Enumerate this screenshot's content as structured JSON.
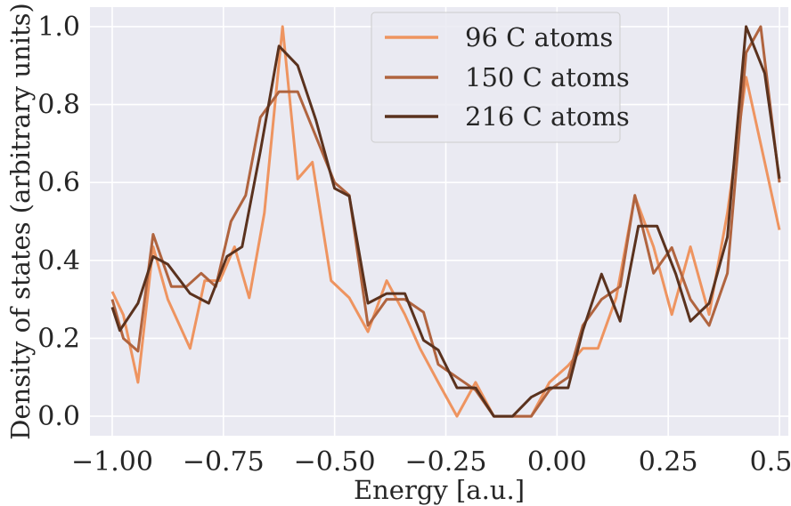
{
  "chart_data": {
    "type": "line",
    "xlabel": "Energy [a.u.]",
    "ylabel": "Density of states (arbitrary units)",
    "xlim": [
      -1.05,
      0.52
    ],
    "ylim": [
      -0.05,
      1.05
    ],
    "x_ticks": [
      -1.0,
      -0.75,
      -0.5,
      -0.25,
      0.0,
      0.25,
      0.5
    ],
    "x_tick_labels": [
      "−1.00",
      "−0.75",
      "−0.50",
      "−0.25",
      "0.00",
      "0.25",
      "0.50"
    ],
    "y_ticks": [
      0.0,
      0.2,
      0.4,
      0.6,
      0.8,
      1.0
    ],
    "y_tick_labels": [
      "0.0",
      "0.2",
      "0.4",
      "0.6",
      "0.8",
      "1.0"
    ],
    "grid": true,
    "legend_position": "top-center",
    "background": "#eaeaf2",
    "grid_color": "#ffffff",
    "series": [
      {
        "name": "96 C atoms",
        "color": "#ee9460",
        "x": [
          -1.0,
          -0.975,
          -0.942,
          -0.908,
          -0.875,
          -0.825,
          -0.792,
          -0.758,
          -0.725,
          -0.692,
          -0.658,
          -0.617,
          -0.583,
          -0.55,
          -0.508,
          -0.467,
          -0.425,
          -0.383,
          -0.342,
          -0.308,
          -0.267,
          -0.225,
          -0.183,
          -0.142,
          -0.1,
          -0.058,
          -0.017,
          0.025,
          0.058,
          0.092,
          0.133,
          0.175,
          0.217,
          0.258,
          0.3,
          0.342,
          0.383,
          0.425,
          0.467,
          0.5
        ],
        "y": [
          0.32,
          0.26,
          0.087,
          0.435,
          0.3,
          0.174,
          0.348,
          0.348,
          0.435,
          0.304,
          0.522,
          1.0,
          0.609,
          0.652,
          0.348,
          0.304,
          0.217,
          0.348,
          0.261,
          0.174,
          0.087,
          0.0,
          0.087,
          0.0,
          0.0,
          0.0,
          0.087,
          0.13,
          0.174,
          0.174,
          0.304,
          0.565,
          0.435,
          0.261,
          0.435,
          0.261,
          0.522,
          0.87,
          0.652,
          0.478
        ]
      },
      {
        "name": "150 C atoms",
        "color": "#b0643f",
        "x": [
          -1.0,
          -0.975,
          -0.942,
          -0.908,
          -0.867,
          -0.833,
          -0.8,
          -0.767,
          -0.733,
          -0.7,
          -0.667,
          -0.625,
          -0.583,
          -0.5,
          -0.467,
          -0.425,
          -0.383,
          -0.342,
          -0.3,
          -0.267,
          -0.225,
          -0.183,
          -0.142,
          -0.1,
          -0.058,
          -0.017,
          0.025,
          0.058,
          0.1,
          0.142,
          0.175,
          0.217,
          0.258,
          0.3,
          0.342,
          0.383,
          0.425,
          0.458,
          0.5
        ],
        "y": [
          0.3,
          0.2,
          0.167,
          0.467,
          0.333,
          0.333,
          0.367,
          0.333,
          0.5,
          0.567,
          0.767,
          0.833,
          0.833,
          0.6,
          0.567,
          0.233,
          0.3,
          0.3,
          0.267,
          0.133,
          0.1,
          0.067,
          0.0,
          0.0,
          0.0,
          0.067,
          0.1,
          0.233,
          0.3,
          0.333,
          0.567,
          0.367,
          0.433,
          0.3,
          0.233,
          0.367,
          0.933,
          1.0,
          0.6
        ]
      },
      {
        "name": "216 C atoms",
        "color": "#5a321e",
        "x": [
          -1.0,
          -0.983,
          -0.942,
          -0.908,
          -0.875,
          -0.825,
          -0.783,
          -0.742,
          -0.708,
          -0.667,
          -0.625,
          -0.583,
          -0.542,
          -0.5,
          -0.467,
          -0.425,
          -0.383,
          -0.342,
          -0.3,
          -0.267,
          -0.225,
          -0.183,
          -0.142,
          -0.1,
          -0.058,
          -0.017,
          0.025,
          0.058,
          0.1,
          0.142,
          0.183,
          0.225,
          0.267,
          0.3,
          0.342,
          0.383,
          0.425,
          0.467,
          0.5
        ],
        "y": [
          0.28,
          0.22,
          0.29,
          0.41,
          0.39,
          0.315,
          0.29,
          0.41,
          0.435,
          0.68,
          0.95,
          0.9,
          0.76,
          0.585,
          0.565,
          0.29,
          0.315,
          0.315,
          0.195,
          0.17,
          0.073,
          0.073,
          0.0,
          0.0,
          0.049,
          0.073,
          0.073,
          0.22,
          0.365,
          0.244,
          0.488,
          0.488,
          0.365,
          0.244,
          0.29,
          0.46,
          1.0,
          0.88,
          0.61
        ]
      }
    ]
  }
}
